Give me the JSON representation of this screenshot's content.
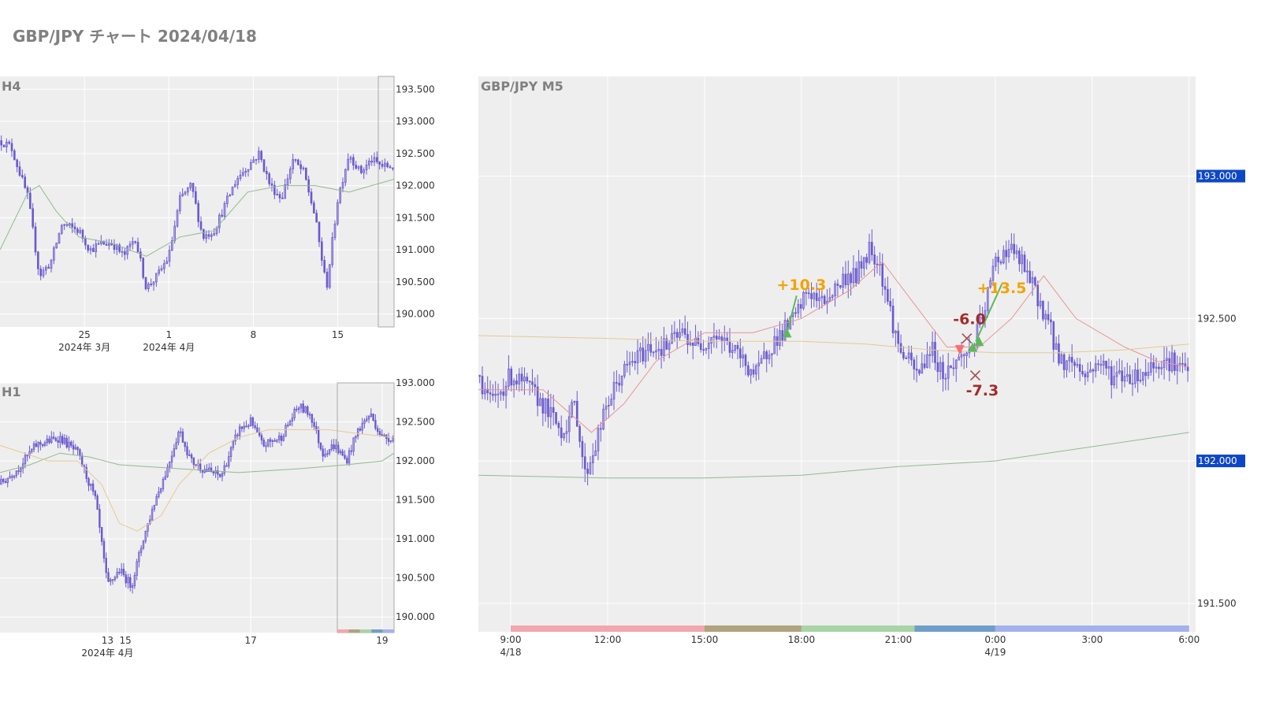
{
  "title": "GBP/JPY チャート 2024/04/18",
  "colors": {
    "plot_bg": "#eeeeee",
    "grid": "#ffffff",
    "candle": "#6a5acd",
    "tag_bg": "#0d47c8"
  },
  "chart_data": [
    {
      "type": "candlestick",
      "label": "H4",
      "y_ticks": [
        "193.500",
        "193.000",
        "192.500",
        "192.000",
        "191.500",
        "191.000",
        "190.500",
        "190.000"
      ],
      "ylim": [
        189.8,
        193.7
      ],
      "x_ticks": [
        {
          "x": 0.15,
          "label": "25",
          "sub": "2024年 3月"
        },
        {
          "x": 0.3,
          "label": "1",
          "sub": "2024年 4月"
        },
        {
          "x": 0.45,
          "label": "8",
          "sub": ""
        },
        {
          "x": 0.6,
          "label": "15",
          "sub": ""
        }
      ],
      "keypoints": [
        [
          0,
          192.7
        ],
        [
          0.02,
          192.6
        ],
        [
          0.05,
          191.8
        ],
        [
          0.07,
          190.6
        ],
        [
          0.09,
          190.8
        ],
        [
          0.11,
          191.4
        ],
        [
          0.14,
          191.3
        ],
        [
          0.16,
          191.0
        ],
        [
          0.18,
          191.1
        ],
        [
          0.2,
          191.1
        ],
        [
          0.22,
          190.9
        ],
        [
          0.24,
          191.2
        ],
        [
          0.26,
          190.4
        ],
        [
          0.28,
          190.6
        ],
        [
          0.3,
          190.9
        ],
        [
          0.32,
          191.8
        ],
        [
          0.34,
          192.0
        ],
        [
          0.36,
          191.2
        ],
        [
          0.38,
          191.3
        ],
        [
          0.4,
          191.7
        ],
        [
          0.42,
          192.1
        ],
        [
          0.44,
          192.3
        ],
        [
          0.46,
          192.5
        ],
        [
          0.48,
          192.0
        ],
        [
          0.5,
          191.8
        ],
        [
          0.52,
          192.4
        ],
        [
          0.54,
          192.2
        ],
        [
          0.56,
          191.5
        ],
        [
          0.58,
          190.4
        ],
        [
          0.6,
          191.8
        ],
        [
          0.62,
          192.5
        ],
        [
          0.64,
          192.2
        ],
        [
          0.66,
          192.4
        ],
        [
          0.68,
          192.3
        ],
        [
          0.7,
          192.3
        ]
      ],
      "ma_lines": [
        {
          "color": "#8fbc8f",
          "points": [
            [
              0,
              191.0
            ],
            [
              0.05,
              191.9
            ],
            [
              0.07,
              192.0
            ],
            [
              0.1,
              191.6
            ],
            [
              0.14,
              191.2
            ],
            [
              0.2,
              191.1
            ],
            [
              0.26,
              190.9
            ],
            [
              0.32,
              191.2
            ],
            [
              0.38,
              191.3
            ],
            [
              0.44,
              191.9
            ],
            [
              0.5,
              192.0
            ],
            [
              0.56,
              192.0
            ],
            [
              0.62,
              191.9
            ],
            [
              0.66,
              192.0
            ],
            [
              0.7,
              192.1
            ]
          ]
        }
      ],
      "highlight_from": 0.672
    },
    {
      "type": "candlestick",
      "label": "H1",
      "y_ticks": [
        "193.000",
        "192.500",
        "192.000",
        "191.500",
        "191.000",
        "190.500",
        "190.000"
      ],
      "ylim": [
        189.8,
        193.0
      ],
      "x_ticks": [
        {
          "x": 0.18,
          "label": "13",
          "sub": "2024年 4月"
        },
        {
          "x": 0.21,
          "label": "15",
          "sub": ""
        },
        {
          "x": 0.42,
          "label": "17",
          "sub": ""
        },
        {
          "x": 0.64,
          "label": "19",
          "sub": ""
        }
      ],
      "keypoints": [
        [
          0,
          191.7
        ],
        [
          0.03,
          191.9
        ],
        [
          0.06,
          192.2
        ],
        [
          0.1,
          192.3
        ],
        [
          0.13,
          192.1
        ],
        [
          0.16,
          191.5
        ],
        [
          0.18,
          190.4
        ],
        [
          0.2,
          190.6
        ],
        [
          0.22,
          190.4
        ],
        [
          0.24,
          191.0
        ],
        [
          0.26,
          191.5
        ],
        [
          0.28,
          191.9
        ],
        [
          0.3,
          192.4
        ],
        [
          0.32,
          192.0
        ],
        [
          0.34,
          191.9
        ],
        [
          0.37,
          191.8
        ],
        [
          0.4,
          192.4
        ],
        [
          0.42,
          192.5
        ],
        [
          0.44,
          192.2
        ],
        [
          0.47,
          192.3
        ],
        [
          0.5,
          192.7
        ],
        [
          0.52,
          192.6
        ],
        [
          0.54,
          192.1
        ],
        [
          0.56,
          192.2
        ],
        [
          0.58,
          192.0
        ],
        [
          0.6,
          192.4
        ],
        [
          0.62,
          192.6
        ],
        [
          0.64,
          192.3
        ],
        [
          0.66,
          192.3
        ]
      ],
      "ma_lines": [
        {
          "color": "#8fbc8f",
          "points": [
            [
              0,
              191.85
            ],
            [
              0.05,
              191.95
            ],
            [
              0.1,
              192.1
            ],
            [
              0.15,
              192.05
            ],
            [
              0.2,
              191.95
            ],
            [
              0.3,
              191.9
            ],
            [
              0.4,
              191.85
            ],
            [
              0.5,
              191.9
            ],
            [
              0.58,
              191.95
            ],
            [
              0.64,
              192.0
            ],
            [
              0.66,
              192.1
            ]
          ]
        },
        {
          "color": "#e6c896",
          "points": [
            [
              0,
              192.2
            ],
            [
              0.08,
              192.0
            ],
            [
              0.13,
              192.0
            ],
            [
              0.17,
              191.7
            ],
            [
              0.2,
              191.2
            ],
            [
              0.23,
              191.1
            ],
            [
              0.27,
              191.3
            ],
            [
              0.3,
              191.7
            ],
            [
              0.35,
              192.1
            ],
            [
              0.4,
              192.3
            ],
            [
              0.45,
              192.4
            ],
            [
              0.5,
              192.4
            ],
            [
              0.55,
              192.4
            ],
            [
              0.6,
              192.35
            ],
            [
              0.66,
              192.3
            ]
          ]
        }
      ],
      "highlight_from": 0.565
    },
    {
      "type": "candlestick",
      "label": "GBP/JPY M5",
      "y_ticks": [
        "193.000",
        "192.500",
        "192.000",
        "191.500"
      ],
      "ylim": [
        191.4,
        193.35
      ],
      "price_tags": [
        "193.000",
        "192.000"
      ],
      "x_ticks": [
        {
          "x": 9,
          "label": "9:00",
          "sub": "4/18"
        },
        {
          "x": 12,
          "label": "12:00",
          "sub": ""
        },
        {
          "x": 15,
          "label": "15:00",
          "sub": ""
        },
        {
          "x": 18,
          "label": "18:00",
          "sub": ""
        },
        {
          "x": 21,
          "label": "21:00",
          "sub": ""
        },
        {
          "x": 24,
          "label": "0:00",
          "sub": "4/19"
        },
        {
          "x": 27,
          "label": "3:00",
          "sub": ""
        },
        {
          "x": 30,
          "label": "6:00",
          "sub": ""
        }
      ],
      "xlim": [
        8,
        30.2
      ],
      "keypoints": [
        [
          8,
          192.3
        ],
        [
          8.4,
          192.2
        ],
        [
          9,
          192.3
        ],
        [
          9.6,
          192.25
        ],
        [
          10,
          192.2
        ],
        [
          10.6,
          192.1
        ],
        [
          11,
          192.2
        ],
        [
          11.3,
          191.95
        ],
        [
          11.6,
          192.05
        ],
        [
          12,
          192.2
        ],
        [
          12.4,
          192.3
        ],
        [
          12.8,
          192.35
        ],
        [
          13.3,
          192.4
        ],
        [
          13.8,
          192.4
        ],
        [
          14.3,
          192.45
        ],
        [
          14.8,
          192.4
        ],
        [
          15.3,
          192.45
        ],
        [
          15.8,
          192.4
        ],
        [
          16.2,
          192.35
        ],
        [
          16.6,
          192.3
        ],
        [
          17,
          192.4
        ],
        [
          17.4,
          192.45
        ],
        [
          17.8,
          192.5
        ],
        [
          18.2,
          192.6
        ],
        [
          18.6,
          192.55
        ],
        [
          19,
          192.6
        ],
        [
          19.4,
          192.65
        ],
        [
          19.7,
          192.65
        ],
        [
          20.1,
          192.75
        ],
        [
          20.4,
          192.7
        ],
        [
          20.7,
          192.55
        ],
        [
          21,
          192.4
        ],
        [
          21.3,
          192.35
        ],
        [
          21.6,
          192.3
        ],
        [
          22,
          192.4
        ],
        [
          22.4,
          192.3
        ],
        [
          22.8,
          192.35
        ],
        [
          23.3,
          192.4
        ],
        [
          23.6,
          192.5
        ],
        [
          24,
          192.7
        ],
        [
          24.4,
          192.75
        ],
        [
          24.8,
          192.7
        ],
        [
          25.2,
          192.6
        ],
        [
          25.6,
          192.5
        ],
        [
          26,
          192.35
        ],
        [
          26.4,
          192.35
        ],
        [
          26.8,
          192.3
        ],
        [
          27.2,
          192.35
        ],
        [
          27.6,
          192.3
        ],
        [
          28,
          192.3
        ],
        [
          28.5,
          192.3
        ],
        [
          29,
          192.35
        ],
        [
          29.5,
          192.35
        ],
        [
          30,
          192.3
        ]
      ],
      "ma_lines": [
        {
          "color": "#e89595",
          "points": [
            [
              8,
              192.25
            ],
            [
              10,
              192.25
            ],
            [
              11.5,
              192.1
            ],
            [
              12.5,
              192.2
            ],
            [
              13.5,
              192.35
            ],
            [
              15,
              192.45
            ],
            [
              16.5,
              192.45
            ],
            [
              18,
              192.5
            ],
            [
              19.5,
              192.6
            ],
            [
              20.5,
              192.7
            ],
            [
              21.5,
              192.55
            ],
            [
              22.5,
              192.4
            ],
            [
              23.5,
              192.4
            ],
            [
              24.5,
              192.5
            ],
            [
              25.5,
              192.65
            ],
            [
              26.5,
              192.5
            ],
            [
              28,
              192.4
            ],
            [
              29,
              192.35
            ],
            [
              30,
              192.33
            ]
          ]
        },
        {
          "color": "#e6c896",
          "points": [
            [
              8,
              192.44
            ],
            [
              12,
              192.43
            ],
            [
              15,
              192.42
            ],
            [
              18,
              192.42
            ],
            [
              20,
              192.41
            ],
            [
              22,
              192.39
            ],
            [
              24,
              192.38
            ],
            [
              26,
              192.38
            ],
            [
              28,
              192.39
            ],
            [
              30,
              192.41
            ]
          ]
        },
        {
          "color": "#8fbc8f",
          "points": [
            [
              8,
              191.95
            ],
            [
              12,
              191.94
            ],
            [
              15,
              191.94
            ],
            [
              18,
              191.95
            ],
            [
              21,
              191.98
            ],
            [
              24,
              192.0
            ],
            [
              27,
              192.05
            ],
            [
              30,
              192.1
            ]
          ]
        }
      ],
      "annotations": [
        {
          "text": "+10.3",
          "x": 18.0,
          "y": 192.6,
          "color": "#f4a300"
        },
        {
          "text": "+13.5",
          "x": 24.2,
          "y": 192.59,
          "color": "#f4a300"
        },
        {
          "text": "-6.0",
          "x": 23.2,
          "y": 192.48,
          "color": "#a52a2a"
        },
        {
          "text": "-7.3",
          "x": 23.6,
          "y": 192.23,
          "color": "#a52a2a"
        }
      ],
      "arrows": [
        {
          "from": [
            17.55,
            192.45
          ],
          "to": [
            17.85,
            192.58
          ],
          "color": "#5cb85c"
        },
        {
          "from": [
            23.4,
            192.42
          ],
          "to": [
            24.2,
            192.62
          ],
          "color": "#5cb85c"
        }
      ],
      "markers": [
        {
          "x": 17.55,
          "y": 192.45,
          "shape": "up",
          "color": "#5cb85c"
        },
        {
          "x": 23.3,
          "y": 192.4,
          "shape": "up",
          "color": "#5cb85c"
        },
        {
          "x": 23.5,
          "y": 192.42,
          "shape": "up",
          "color": "#5cb85c"
        },
        {
          "x": 22.9,
          "y": 192.39,
          "shape": "down",
          "color": "#ff6b6b"
        },
        {
          "x": 23.12,
          "y": 192.43,
          "shape": "x",
          "color": "#a05050"
        },
        {
          "x": 23.38,
          "y": 192.3,
          "shape": "x",
          "color": "#a05050"
        }
      ],
      "sessions": [
        {
          "from": 9,
          "to": 15,
          "color": "#f2a6ad"
        },
        {
          "from": 15,
          "to": 18,
          "color": "#b0a37d"
        },
        {
          "from": 18,
          "to": 21.5,
          "color": "#a8d4a6"
        },
        {
          "from": 21.5,
          "to": 24,
          "color": "#6f9fc8"
        },
        {
          "from": 24,
          "to": 30,
          "color": "#a3b1ec"
        }
      ]
    }
  ]
}
